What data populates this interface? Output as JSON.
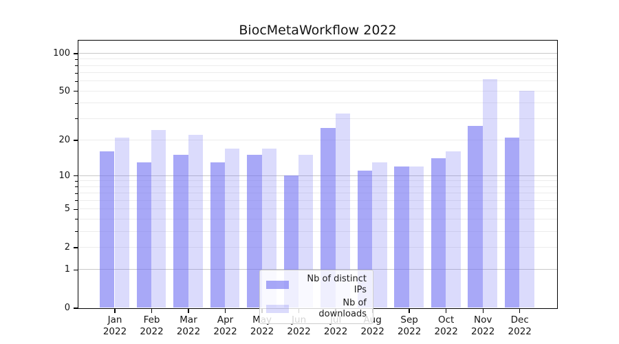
{
  "chart_data": {
    "type": "bar",
    "title": "BiocMetaWorkflow 2022",
    "categories": [
      "Jan",
      "Feb",
      "Mar",
      "Apr",
      "May",
      "Jun",
      "Jul",
      "Aug",
      "Sep",
      "Oct",
      "Nov",
      "Dec"
    ],
    "x_year": "2022",
    "series": [
      {
        "name": "Nb of distinct IPs",
        "values": [
          16,
          13,
          15,
          13,
          15,
          10,
          25,
          11,
          12,
          14,
          26,
          21
        ],
        "color": "#6e6ef2",
        "alpha": 0.6
      },
      {
        "name": "Nb of downloads",
        "values": [
          21,
          24,
          22,
          17,
          17,
          15,
          33,
          13,
          12,
          16,
          62,
          50
        ],
        "color": "#6e6ef2",
        "alpha": 0.25
      }
    ],
    "y_ticks": [
      0,
      1,
      2,
      5,
      10,
      20,
      50,
      100
    ],
    "y_minor_gridlines": [
      2,
      3,
      4,
      5,
      6,
      7,
      8,
      9,
      20,
      30,
      40,
      50,
      60,
      70,
      80,
      90
    ],
    "y_major_gridlines": [
      1,
      10,
      100
    ],
    "scale": "log1p",
    "ylim": [
      0,
      100
    ],
    "grid": "on",
    "legend_position": "lower center",
    "colors": {
      "axis": "#000000",
      "major_grid": "#c8c8c8",
      "minor_grid": "#ececec",
      "text": "#141414"
    }
  }
}
